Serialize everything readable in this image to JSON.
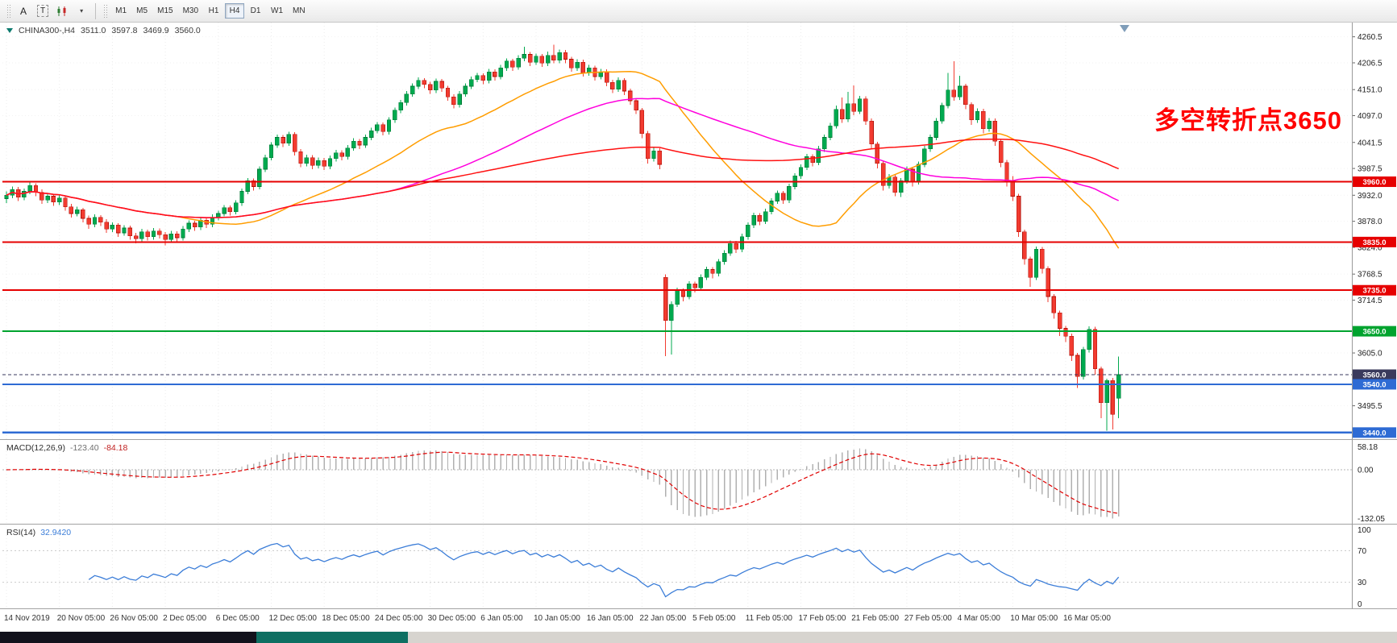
{
  "toolbar": {
    "tools": {
      "annotation_a": "A",
      "text_box": "T"
    },
    "timeframes": [
      "M1",
      "M5",
      "M15",
      "M30",
      "H1",
      "H4",
      "D1",
      "W1",
      "MN"
    ],
    "active_timeframe": "H4"
  },
  "chart_info": {
    "symbol_period": "CHINA300-,H4",
    "open": "3511.0",
    "high": "3597.8",
    "low": "3469.9",
    "close": "3560.0"
  },
  "indicators": {
    "macd": {
      "name": "MACD(12,26,9)",
      "value_main": "-123.40",
      "value_signal": "-84.18",
      "scale_top": "58.18",
      "scale_zero": "0.00",
      "scale_bottom": "-132.05",
      "fast": 12,
      "slow": 26,
      "signal": 9
    },
    "rsi": {
      "name": "RSI(14)",
      "value": "32.9420",
      "period": 14,
      "scale": [
        "100",
        "70",
        "30",
        "0"
      ],
      "levels": [
        70,
        30
      ]
    }
  },
  "colors": {
    "up": "#00a94f",
    "up_border": "#007a36",
    "down": "#f23b30",
    "down_border": "#b01208",
    "macd_hist": "#b0b0b0",
    "macd_signal": "#e00000",
    "rsi_line": "#3b7dd8",
    "annotation": "#ff0000"
  },
  "chart_data": {
    "type": "candlestick",
    "symbol": "CHINA300-",
    "timeframe": "H4",
    "annotation": {
      "text": "多空转折点3650",
      "color": "#ff0000"
    },
    "y_axis": {
      "min": 3428,
      "max": 4290,
      "ticks": [
        4260.5,
        4206.5,
        4151.0,
        4097.0,
        4041.5,
        3987.5,
        3932.0,
        3878.0,
        3824.0,
        3768.5,
        3714.5,
        3605.0,
        3495.5
      ]
    },
    "x_labels": [
      {
        "i": 0,
        "t": "14 Nov 2019"
      },
      {
        "i": 9,
        "t": "20 Nov 05:00"
      },
      {
        "i": 18,
        "t": "26 Nov 05:00"
      },
      {
        "i": 27,
        "t": "2 Dec 05:00"
      },
      {
        "i": 36,
        "t": "6 Dec 05:00"
      },
      {
        "i": 45,
        "t": "12 Dec 05:00"
      },
      {
        "i": 54,
        "t": "18 Dec 05:00"
      },
      {
        "i": 63,
        "t": "24 Dec 05:00"
      },
      {
        "i": 72,
        "t": "30 Dec 05:00"
      },
      {
        "i": 81,
        "t": "6 Jan 05:00"
      },
      {
        "i": 90,
        "t": "10 Jan 05:00"
      },
      {
        "i": 99,
        "t": "16 Jan 05:00"
      },
      {
        "i": 108,
        "t": "22 Jan 05:00"
      },
      {
        "i": 117,
        "t": "5 Feb 05:00"
      },
      {
        "i": 126,
        "t": "11 Feb 05:00"
      },
      {
        "i": 135,
        "t": "17 Feb 05:00"
      },
      {
        "i": 144,
        "t": "21 Feb 05:00"
      },
      {
        "i": 153,
        "t": "27 Feb 05:00"
      },
      {
        "i": 162,
        "t": "4 Mar 05:00"
      },
      {
        "i": 171,
        "t": "10 Mar 05:00"
      },
      {
        "i": 180,
        "t": "16 Mar 05:00"
      }
    ],
    "levels": [
      {
        "price": 3960.0,
        "label": "3960.0",
        "line_color": "#e60000",
        "label_bg": "#e60000",
        "width": 2.4,
        "dash": ""
      },
      {
        "price": 3835.0,
        "label": "3835.0",
        "line_color": "#e60000",
        "label_bg": "#e60000",
        "width": 2,
        "dash": ""
      },
      {
        "price": 3735.0,
        "label": "3735.0",
        "line_color": "#e60000",
        "label_bg": "#e60000",
        "width": 2,
        "dash": ""
      },
      {
        "price": 3650.0,
        "label": "3650.0",
        "line_color": "#00a32e",
        "label_bg": "#00a32e",
        "width": 2,
        "dash": ""
      },
      {
        "price": 3560.0,
        "label": "3560.0",
        "line_color": "#3a3a5c",
        "label_bg": "#3a3a5c",
        "width": 1,
        "dash": "4,3",
        "current": true
      },
      {
        "price": 3540.0,
        "label": "3540.0",
        "line_color": "#2e6bd4",
        "label_bg": "#2e6bd4",
        "width": 2.4,
        "dash": ""
      },
      {
        "price": 3440.0,
        "label": "3440.0",
        "line_color": "#2e6bd4",
        "label_bg": "#2e6bd4",
        "width": 2.4,
        "dash": ""
      }
    ],
    "ma_lines": [
      {
        "period": 30,
        "color": "#ff9d00"
      },
      {
        "period": 60,
        "color": "#ff00dd"
      },
      {
        "period": 120,
        "color": "#ff1111"
      }
    ],
    "ohlc": [
      [
        3925,
        3940,
        3916,
        3932
      ],
      [
        3932,
        3950,
        3926,
        3944
      ],
      [
        3944,
        3949,
        3920,
        3928
      ],
      [
        3928,
        3946,
        3922,
        3940
      ],
      [
        3940,
        3958,
        3934,
        3952
      ],
      [
        3952,
        3957,
        3930,
        3938
      ],
      [
        3938,
        3944,
        3914,
        3922
      ],
      [
        3922,
        3936,
        3916,
        3930
      ],
      [
        3930,
        3935,
        3910,
        3918
      ],
      [
        3918,
        3932,
        3912,
        3926
      ],
      [
        3926,
        3930,
        3900,
        3908
      ],
      [
        3908,
        3914,
        3886,
        3894
      ],
      [
        3894,
        3908,
        3888,
        3902
      ],
      [
        3902,
        3906,
        3876,
        3884
      ],
      [
        3884,
        3890,
        3862,
        3872
      ],
      [
        3872,
        3892,
        3866,
        3886
      ],
      [
        3886,
        3891,
        3868,
        3876
      ],
      [
        3876,
        3882,
        3854,
        3862
      ],
      [
        3862,
        3876,
        3856,
        3870
      ],
      [
        3870,
        3874,
        3846,
        3854
      ],
      [
        3854,
        3870,
        3848,
        3864
      ],
      [
        3864,
        3869,
        3840,
        3848
      ],
      [
        3848,
        3854,
        3832,
        3842
      ],
      [
        3842,
        3862,
        3836,
        3856
      ],
      [
        3856,
        3861,
        3838,
        3846
      ],
      [
        3846,
        3864,
        3840,
        3858
      ],
      [
        3858,
        3863,
        3842,
        3850
      ],
      [
        3850,
        3856,
        3828,
        3840
      ],
      [
        3840,
        3858,
        3834,
        3852
      ],
      [
        3852,
        3857,
        3836,
        3844
      ],
      [
        3844,
        3868,
        3838,
        3862
      ],
      [
        3862,
        3880,
        3856,
        3874
      ],
      [
        3874,
        3879,
        3858,
        3866
      ],
      [
        3866,
        3886,
        3860,
        3880
      ],
      [
        3880,
        3885,
        3864,
        3872
      ],
      [
        3872,
        3892,
        3866,
        3886
      ],
      [
        3886,
        3900,
        3880,
        3894
      ],
      [
        3894,
        3912,
        3888,
        3906
      ],
      [
        3906,
        3911,
        3890,
        3898
      ],
      [
        3898,
        3922,
        3892,
        3916
      ],
      [
        3916,
        3946,
        3910,
        3940
      ],
      [
        3940,
        3968,
        3934,
        3962
      ],
      [
        3962,
        3967,
        3942,
        3950
      ],
      [
        3950,
        3992,
        3944,
        3986
      ],
      [
        3986,
        4016,
        3980,
        4010
      ],
      [
        4010,
        4042,
        4004,
        4036
      ],
      [
        4036,
        4058,
        4030,
        4052
      ],
      [
        4052,
        4057,
        4032,
        4040
      ],
      [
        4040,
        4064,
        4034,
        4058
      ],
      [
        4058,
        4063,
        4014,
        4022
      ],
      [
        4022,
        4028,
        3990,
        3998
      ],
      [
        3998,
        4016,
        3992,
        4010
      ],
      [
        4010,
        4015,
        3986,
        3994
      ],
      [
        3994,
        4010,
        3988,
        4004
      ],
      [
        4004,
        4009,
        3984,
        3992
      ],
      [
        3992,
        4014,
        3986,
        4008
      ],
      [
        4008,
        4026,
        4002,
        4020
      ],
      [
        4020,
        4025,
        4004,
        4012
      ],
      [
        4012,
        4036,
        4006,
        4030
      ],
      [
        4030,
        4050,
        4024,
        4044
      ],
      [
        4044,
        4049,
        4028,
        4036
      ],
      [
        4036,
        4058,
        4030,
        4052
      ],
      [
        4052,
        4072,
        4046,
        4066
      ],
      [
        4066,
        4084,
        4060,
        4078
      ],
      [
        4078,
        4083,
        4056,
        4064
      ],
      [
        4064,
        4094,
        4058,
        4088
      ],
      [
        4088,
        4114,
        4082,
        4108
      ],
      [
        4108,
        4130,
        4102,
        4124
      ],
      [
        4124,
        4148,
        4118,
        4142
      ],
      [
        4142,
        4164,
        4136,
        4158
      ],
      [
        4158,
        4176,
        4152,
        4170
      ],
      [
        4170,
        4175,
        4154,
        4162
      ],
      [
        4162,
        4167,
        4142,
        4150
      ],
      [
        4150,
        4174,
        4144,
        4168
      ],
      [
        4168,
        4173,
        4146,
        4154
      ],
      [
        4154,
        4159,
        4128,
        4136
      ],
      [
        4136,
        4141,
        4112,
        4120
      ],
      [
        4120,
        4148,
        4114,
        4142
      ],
      [
        4142,
        4164,
        4136,
        4158
      ],
      [
        4158,
        4178,
        4152,
        4172
      ],
      [
        4172,
        4186,
        4166,
        4180
      ],
      [
        4180,
        4185,
        4162,
        4170
      ],
      [
        4170,
        4194,
        4164,
        4188
      ],
      [
        4188,
        4193,
        4170,
        4178
      ],
      [
        4178,
        4202,
        4172,
        4196
      ],
      [
        4196,
        4216,
        4190,
        4210
      ],
      [
        4210,
        4215,
        4190,
        4198
      ],
      [
        4198,
        4222,
        4192,
        4216
      ],
      [
        4216,
        4240,
        4210,
        4224
      ],
      [
        4224,
        4229,
        4200,
        4208
      ],
      [
        4208,
        4226,
        4202,
        4220
      ],
      [
        4220,
        4225,
        4198,
        4206
      ],
      [
        4206,
        4230,
        4200,
        4222
      ],
      [
        4222,
        4244,
        4206,
        4212
      ],
      [
        4212,
        4234,
        4206,
        4228
      ],
      [
        4228,
        4233,
        4206,
        4214
      ],
      [
        4214,
        4219,
        4188,
        4196
      ],
      [
        4196,
        4214,
        4190,
        4208
      ],
      [
        4208,
        4213,
        4178,
        4186
      ],
      [
        4186,
        4202,
        4180,
        4196
      ],
      [
        4196,
        4201,
        4170,
        4178
      ],
      [
        4178,
        4194,
        4172,
        4188
      ],
      [
        4188,
        4193,
        4158,
        4166
      ],
      [
        4166,
        4171,
        4144,
        4152
      ],
      [
        4152,
        4176,
        4146,
        4170
      ],
      [
        4170,
        4175,
        4140,
        4148
      ],
      [
        4148,
        4153,
        4120,
        4128
      ],
      [
        4128,
        4133,
        4100,
        4108
      ],
      [
        4108,
        4113,
        4050,
        4060
      ],
      [
        4060,
        4065,
        3998,
        4008
      ],
      [
        4008,
        4030,
        4002,
        4024
      ],
      [
        4024,
        4029,
        3986,
        3996
      ],
      [
        3762,
        3768,
        3598,
        3672
      ],
      [
        3672,
        3712,
        3602,
        3706
      ],
      [
        3706,
        3740,
        3700,
        3734
      ],
      [
        3734,
        3739,
        3712,
        3722
      ],
      [
        3722,
        3754,
        3716,
        3748
      ],
      [
        3748,
        3753,
        3730,
        3740
      ],
      [
        3740,
        3768,
        3734,
        3762
      ],
      [
        3762,
        3784,
        3756,
        3778
      ],
      [
        3778,
        3783,
        3760,
        3770
      ],
      [
        3770,
        3800,
        3764,
        3794
      ],
      [
        3794,
        3818,
        3788,
        3812
      ],
      [
        3812,
        3838,
        3806,
        3832
      ],
      [
        3832,
        3837,
        3812,
        3820
      ],
      [
        3820,
        3852,
        3814,
        3846
      ],
      [
        3846,
        3876,
        3840,
        3870
      ],
      [
        3870,
        3896,
        3864,
        3890
      ],
      [
        3890,
        3895,
        3870,
        3878
      ],
      [
        3878,
        3904,
        3872,
        3898
      ],
      [
        3898,
        3926,
        3892,
        3920
      ],
      [
        3920,
        3942,
        3914,
        3936
      ],
      [
        3936,
        3941,
        3914,
        3922
      ],
      [
        3922,
        3956,
        3916,
        3950
      ],
      [
        3950,
        3978,
        3944,
        3972
      ],
      [
        3972,
        3996,
        3966,
        3990
      ],
      [
        3990,
        4018,
        3984,
        4012
      ],
      [
        4012,
        4017,
        3992,
        4000
      ],
      [
        4000,
        4034,
        3994,
        4028
      ],
      [
        4028,
        4058,
        4022,
        4052
      ],
      [
        4052,
        4082,
        4046,
        4076
      ],
      [
        4076,
        4118,
        4070,
        4110
      ],
      [
        4110,
        4135,
        4082,
        4090
      ],
      [
        4090,
        4146,
        4084,
        4122
      ],
      [
        4122,
        4160,
        4098,
        4106
      ],
      [
        4106,
        4138,
        4100,
        4132
      ],
      [
        4132,
        4137,
        4078,
        4086
      ],
      [
        4086,
        4091,
        4028,
        4038
      ],
      [
        4038,
        4043,
        3988,
        3998
      ],
      [
        3998,
        4003,
        3942,
        3952
      ],
      [
        3952,
        3976,
        3946,
        3970
      ],
      [
        3970,
        3975,
        3930,
        3938
      ],
      [
        3938,
        3968,
        3928,
        3962
      ],
      [
        3962,
        3992,
        3956,
        3986
      ],
      [
        3986,
        3991,
        3950,
        3960
      ],
      [
        3960,
        4002,
        3954,
        3996
      ],
      [
        3996,
        4034,
        3990,
        4028
      ],
      [
        4028,
        4058,
        4022,
        4052
      ],
      [
        4052,
        4092,
        4046,
        4086
      ],
      [
        4086,
        4124,
        4080,
        4118
      ],
      [
        4118,
        4186,
        4112,
        4150
      ],
      [
        4150,
        4210,
        4128,
        4136
      ],
      [
        4136,
        4180,
        4130,
        4158
      ],
      [
        4158,
        4163,
        4110,
        4120
      ],
      [
        4120,
        4125,
        4078,
        4088
      ],
      [
        4088,
        4112,
        4082,
        4106
      ],
      [
        4106,
        4111,
        4060,
        4070
      ],
      [
        4070,
        4092,
        4064,
        4086
      ],
      [
        4086,
        4091,
        4034,
        4044
      ],
      [
        4044,
        4049,
        3990,
        4000
      ],
      [
        4000,
        4005,
        3950,
        3962
      ],
      [
        3962,
        3972,
        3920,
        3930
      ],
      [
        3930,
        3935,
        3846,
        3856
      ],
      [
        3856,
        3861,
        3788,
        3800
      ],
      [
        3800,
        3805,
        3742,
        3762
      ],
      [
        3762,
        3826,
        3756,
        3820
      ],
      [
        3820,
        3825,
        3770,
        3780
      ],
      [
        3780,
        3785,
        3710,
        3722
      ],
      [
        3722,
        3727,
        3676,
        3688
      ],
      [
        3688,
        3693,
        3640,
        3656
      ],
      [
        3656,
        3661,
        3628,
        3640
      ],
      [
        3640,
        3645,
        3588,
        3600
      ],
      [
        3600,
        3605,
        3532,
        3556
      ],
      [
        3556,
        3618,
        3550,
        3612
      ],
      [
        3612,
        3660,
        3606,
        3654
      ],
      [
        3654,
        3659,
        3560,
        3572
      ],
      [
        3572,
        3577,
        3470,
        3502
      ],
      [
        3502,
        3552,
        3444,
        3548
      ],
      [
        3548,
        3553,
        3446,
        3478
      ],
      [
        3511,
        3597.8,
        3469.9,
        3560
      ]
    ]
  }
}
